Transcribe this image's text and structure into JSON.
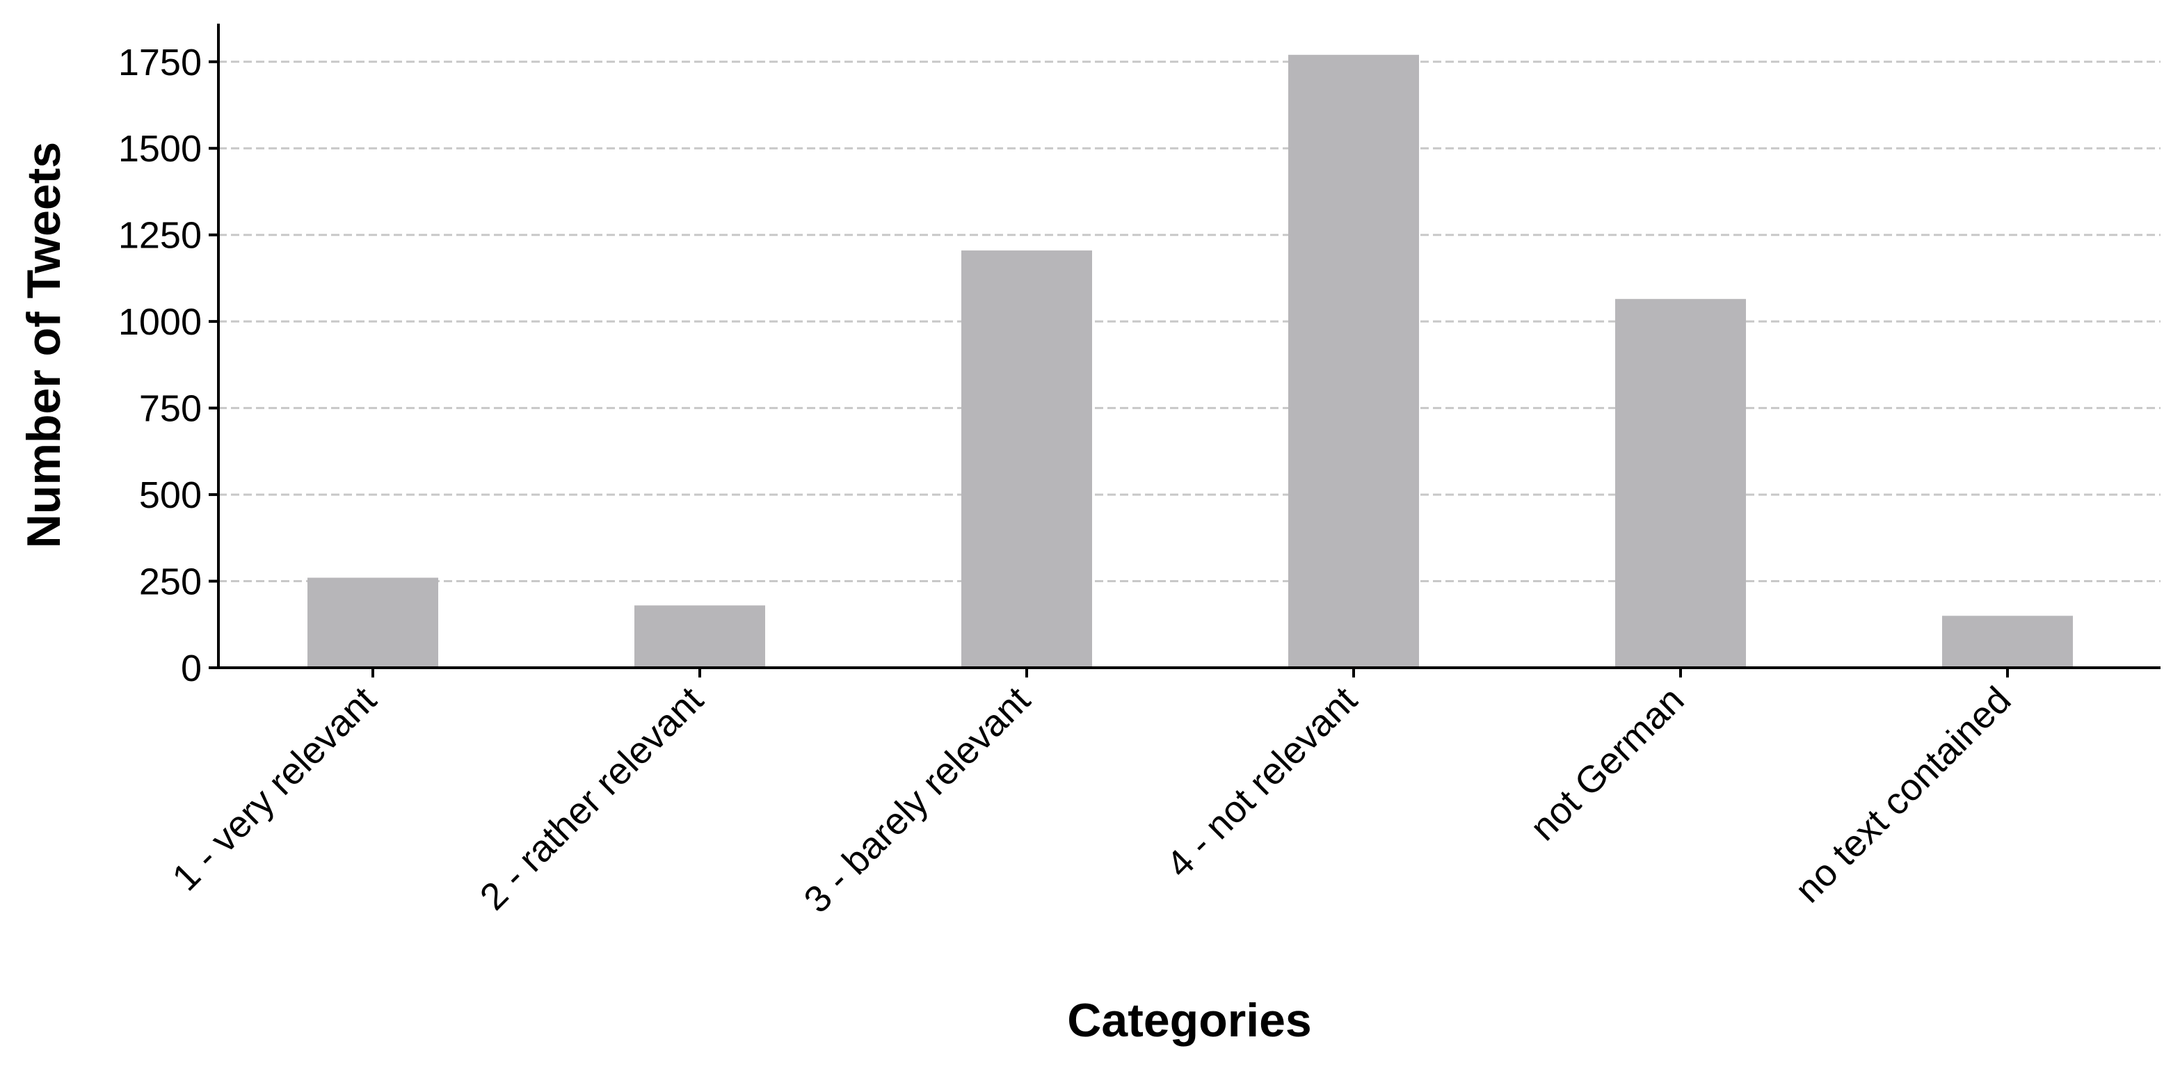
{
  "chart_data": {
    "type": "bar",
    "x_label": "Categories",
    "y_label": "Number of Tweets",
    "categories": [
      "1 - very relevant",
      "2 - rather relevant",
      "3 - barely relevant",
      "4 - not relevant",
      "not German",
      "no text contained"
    ],
    "values": [
      260,
      180,
      1205,
      1770,
      1065,
      150
    ],
    "color": "#b7b6b9",
    "ylim": [
      0,
      1860
    ],
    "yticks": [
      0,
      250,
      500,
      750,
      1000,
      1250,
      1500,
      1750
    ],
    "grid": true
  }
}
